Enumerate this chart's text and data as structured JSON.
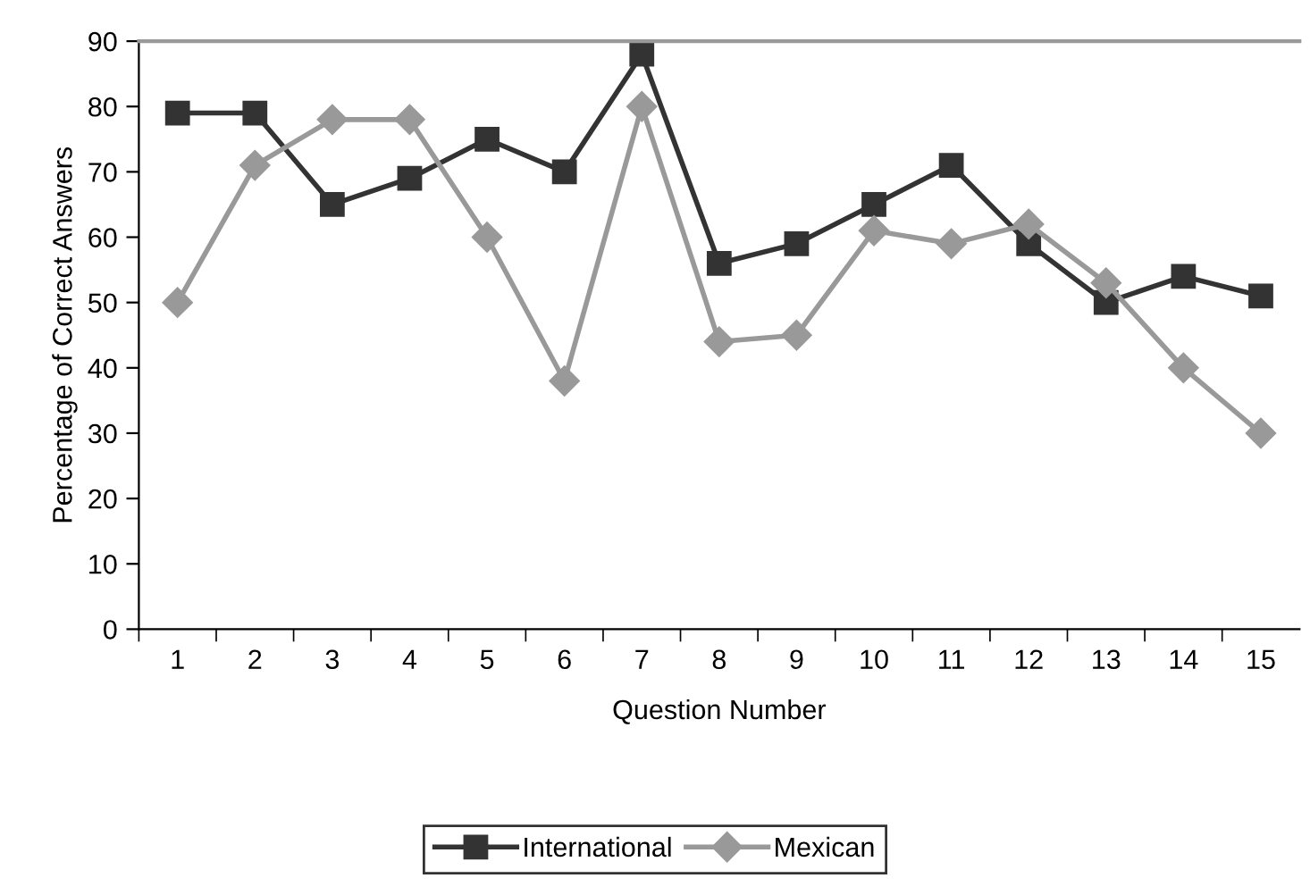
{
  "chart_data": {
    "type": "line",
    "xlabel": "Question Number",
    "ylabel": "Percentage of Correct Answers",
    "categories": [
      "1",
      "2",
      "3",
      "4",
      "5",
      "6",
      "7",
      "8",
      "9",
      "10",
      "11",
      "12",
      "13",
      "14",
      "15"
    ],
    "series": [
      {
        "name": "International",
        "color": "#333333",
        "marker": "square",
        "values": [
          79,
          79,
          65,
          69,
          75,
          70,
          88,
          56,
          59,
          65,
          71,
          59,
          50,
          54,
          51
        ]
      },
      {
        "name": "Mexican",
        "color": "#999999",
        "marker": "diamond",
        "values": [
          50,
          71,
          78,
          78,
          60,
          38,
          80,
          44,
          45,
          61,
          59,
          62,
          53,
          40,
          30
        ]
      }
    ],
    "ylim": [
      0,
      90
    ],
    "yticks": [
      0,
      10,
      20,
      30,
      40,
      50,
      60,
      70,
      80,
      90
    ],
    "grid": false,
    "legend": "bottom",
    "line_style": "solid"
  }
}
